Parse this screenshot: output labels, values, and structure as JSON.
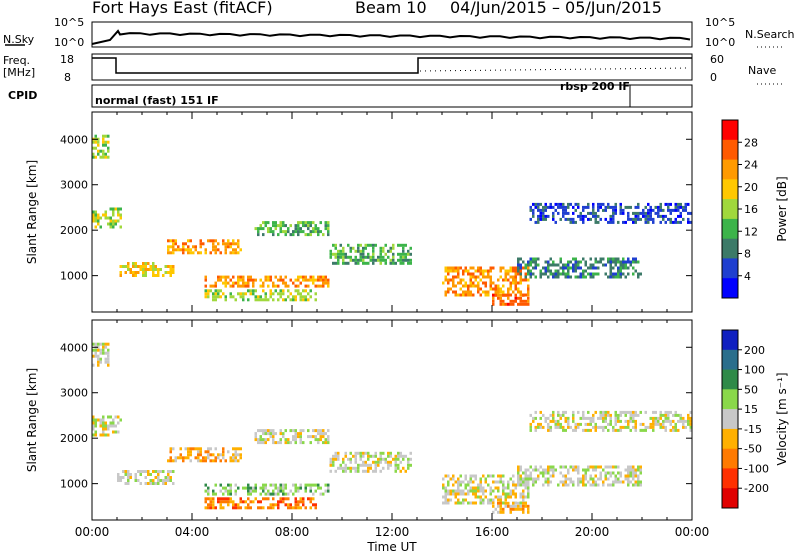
{
  "header": {
    "station": "Fort Hays East (fitACF)",
    "beam_label": "Beam 10",
    "date_range": "04/Jun/2015 – 05/Jun/2015"
  },
  "strip": {
    "nsky_label": "N.Sky",
    "nsky_ticks": [
      "10^5",
      "10^0"
    ],
    "nsearch_label": "N.Search",
    "nsearch_ticks": [
      "10^5",
      "10^0"
    ],
    "freq_label_1": "Freq.",
    "freq_label_2": "[MHz]",
    "freq_ticks": [
      "18",
      "8"
    ],
    "nave_label": "Nave",
    "nave_ticks": [
      "60",
      "0"
    ],
    "cpid_label": "CPID",
    "cpid_mode_1": "normal (fast) 151 IF",
    "cpid_mode_2": "rbsp 200 IF"
  },
  "chart_data": [
    {
      "type": "heatmap",
      "name_role": "power",
      "ylabel": "Slant Range [km]",
      "yticks": [
        1000,
        2000,
        3000,
        4000
      ],
      "ylim": [
        200,
        4600
      ],
      "xlabel": "Time UT",
      "xticks": [
        "00:00",
        "04:00",
        "08:00",
        "12:00",
        "16:00",
        "20:00",
        "00:00"
      ],
      "xlim_hours": [
        0,
        24
      ],
      "colorbar_label": "Power [dB]",
      "colorbar_ticks": [
        "28",
        "24",
        "20",
        "16",
        "12",
        "8",
        "4"
      ],
      "colorbar_colors": [
        "#ff0000",
        "#ff5a00",
        "#ff9a00",
        "#ffc800",
        "#a0d83c",
        "#3cb44a",
        "#3c7a68",
        "#1f3fd0",
        "#0000ff"
      ],
      "regions": [
        {
          "t0": 0.0,
          "t1": 0.7,
          "r0": 3600,
          "r1": 4100,
          "level": 4
        },
        {
          "t0": 0.0,
          "t1": 1.2,
          "r0": 2100,
          "r1": 2500,
          "level": 4
        },
        {
          "t0": 1.0,
          "t1": 3.3,
          "r0": 1000,
          "r1": 1300,
          "level": 3
        },
        {
          "t0": 3.0,
          "t1": 6.0,
          "r0": 1500,
          "r1": 1800,
          "level": 2
        },
        {
          "t0": 4.5,
          "t1": 9.5,
          "r0": 750,
          "r1": 1000,
          "level": 2
        },
        {
          "t0": 4.5,
          "t1": 9.0,
          "r0": 500,
          "r1": 700,
          "level": 4
        },
        {
          "t0": 6.5,
          "t1": 9.5,
          "r0": 1900,
          "r1": 2200,
          "level": 5
        },
        {
          "t0": 9.5,
          "t1": 12.8,
          "r0": 1300,
          "r1": 1700,
          "level": 5
        },
        {
          "t0": 14.0,
          "t1": 17.5,
          "r0": 600,
          "r1": 1200,
          "level": 2
        },
        {
          "t0": 16.0,
          "t1": 17.5,
          "r0": 400,
          "r1": 600,
          "level": 1
        },
        {
          "t0": 17.0,
          "t1": 22.0,
          "r0": 1000,
          "r1": 1400,
          "level": 6
        },
        {
          "t0": 17.5,
          "t1": 24.0,
          "r0": 2200,
          "r1": 2600,
          "level": 7
        }
      ]
    },
    {
      "type": "heatmap",
      "name_role": "velocity",
      "ylabel": "Slant Range [km]",
      "yticks": [
        1000,
        2000,
        3000,
        4000
      ],
      "ylim": [
        200,
        4600
      ],
      "xlabel": "Time UT",
      "xticks": [
        "00:00",
        "04:00",
        "08:00",
        "12:00",
        "16:00",
        "20:00",
        "00:00"
      ],
      "xlim_hours": [
        0,
        24
      ],
      "colorbar_label": "Velocity [m s⁻¹]",
      "colorbar_ticks": [
        "200",
        "100",
        "50",
        "15",
        "-15",
        "-50",
        "-100",
        "-200"
      ],
      "colorbar_colors": [
        "#1020c0",
        "#2a6e8c",
        "#2f8a48",
        "#8ad84a",
        "#c8c8c8",
        "#ffb000",
        "#ff7a00",
        "#ff3000",
        "#e00000"
      ],
      "regions": [
        {
          "t0": 0.0,
          "t1": 0.7,
          "r0": 3600,
          "r1": 4100,
          "level": 4
        },
        {
          "t0": 0.0,
          "t1": 1.2,
          "r0": 2100,
          "r1": 2500,
          "level": 4
        },
        {
          "t0": 1.0,
          "t1": 3.3,
          "r0": 1000,
          "r1": 1300,
          "level": 4
        },
        {
          "t0": 3.0,
          "t1": 6.0,
          "r0": 1500,
          "r1": 1800,
          "level": 5
        },
        {
          "t0": 4.5,
          "t1": 9.5,
          "r0": 750,
          "r1": 1000,
          "level": 3
        },
        {
          "t0": 4.5,
          "t1": 9.0,
          "r0": 500,
          "r1": 700,
          "level": 6
        },
        {
          "t0": 6.5,
          "t1": 9.5,
          "r0": 1900,
          "r1": 2200,
          "level": 4
        },
        {
          "t0": 9.5,
          "t1": 12.8,
          "r0": 1300,
          "r1": 1700,
          "level": 4
        },
        {
          "t0": 14.0,
          "t1": 17.5,
          "r0": 600,
          "r1": 1200,
          "level": 4
        },
        {
          "t0": 16.0,
          "t1": 17.5,
          "r0": 400,
          "r1": 600,
          "level": 5
        },
        {
          "t0": 17.0,
          "t1": 22.0,
          "r0": 1000,
          "r1": 1400,
          "level": 4
        },
        {
          "t0": 17.5,
          "t1": 24.0,
          "r0": 2200,
          "r1": 2600,
          "level": 4
        }
      ]
    }
  ]
}
